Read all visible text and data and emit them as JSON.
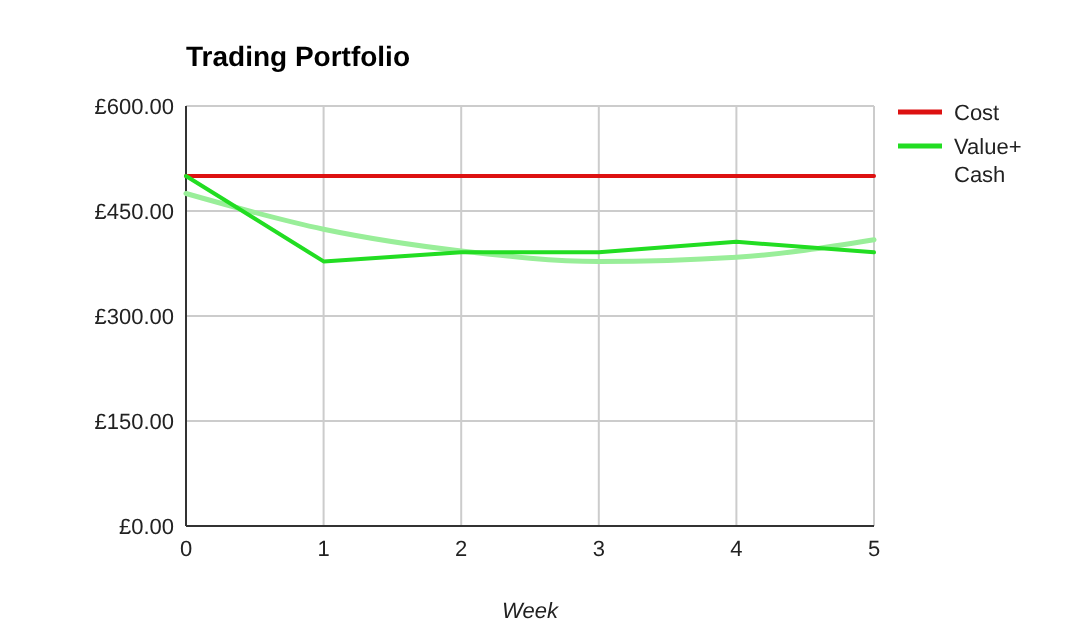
{
  "chart_data": {
    "type": "line",
    "title": "Trading Portfolio",
    "xlabel": "Week",
    "x": [
      0,
      1,
      2,
      3,
      4,
      5
    ],
    "xlim": [
      0,
      5
    ],
    "xticks": [
      0,
      1,
      2,
      3,
      4,
      5
    ],
    "ylim": [
      0,
      600
    ],
    "yticks": [
      {
        "value": 0,
        "label": "£0.00"
      },
      {
        "value": 150,
        "label": "£150.00"
      },
      {
        "value": 300,
        "label": "£300.00"
      },
      {
        "value": 450,
        "label": "£450.00"
      },
      {
        "value": 600,
        "label": "£600.00"
      }
    ],
    "grid": true,
    "legend": "right",
    "series": [
      {
        "name": "Cost",
        "color": "#dd1111",
        "values": [
          500,
          500,
          500,
          500,
          500,
          500
        ]
      },
      {
        "name": "Value+ Cash",
        "color": "#22dd22",
        "values": [
          500,
          378,
          391,
          391,
          406,
          391
        ]
      },
      {
        "type": "line",
        "color": "#99ee99",
        "values": [
          475,
          424,
          393,
          378,
          384,
          409
        ]
      }
    ]
  }
}
